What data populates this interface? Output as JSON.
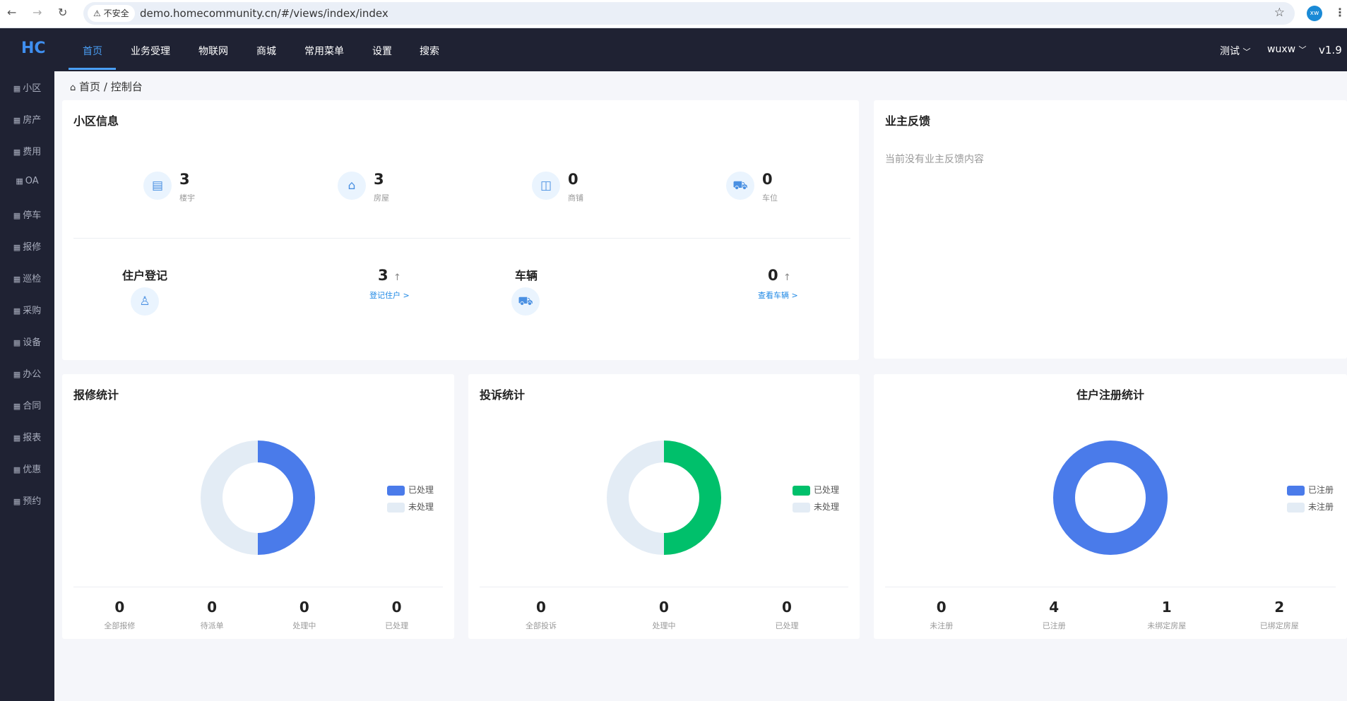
{
  "browser": {
    "insecure_label": "不安全",
    "url": "demo.homecommunity.cn/#/views/index/index",
    "profile_initials": "xw"
  },
  "topnav": {
    "logo": "HC",
    "items": [
      "首页",
      "业务受理",
      "物联网",
      "商城",
      "常用菜单",
      "设置",
      "搜索"
    ],
    "active": "首页",
    "community": "测试",
    "user": "wuxw",
    "version": "v1.9"
  },
  "sidebar": {
    "items": [
      "小区",
      "房产",
      "费用",
      "OA",
      "停车",
      "报修",
      "巡检",
      "采购",
      "设备",
      "办公",
      "合同",
      "报表",
      "优惠",
      "预约"
    ]
  },
  "breadcrumb": {
    "home": "首页",
    "separator": "/",
    "current": "控制台"
  },
  "community_info": {
    "title": "小区信息",
    "stats": [
      {
        "icon": "building-icon",
        "value": "3",
        "label": "楼宇"
      },
      {
        "icon": "house-icon",
        "value": "3",
        "label": "房屋"
      },
      {
        "icon": "shop-bag-icon",
        "value": "0",
        "label": "商铺"
      },
      {
        "icon": "truck-icon",
        "value": "0",
        "label": "车位"
      }
    ],
    "owner_register": {
      "title": "住户登记",
      "count": "3",
      "link": "登记住户 >"
    },
    "vehicles": {
      "title": "车辆",
      "count": "0",
      "link": "查看车辆 >"
    }
  },
  "feedback": {
    "title": "业主反馈",
    "empty_text": "当前没有业主反馈内容"
  },
  "colors": {
    "blue": "#4a7bea",
    "green": "#00c06b",
    "light": "#e3ecf5",
    "accent": "#4a9ff5"
  },
  "chart_data": [
    {
      "type": "pie",
      "title": "报修统计",
      "legend": "right",
      "categories": [
        "已处理",
        "未处理"
      ],
      "values": [
        0,
        0
      ],
      "colors": [
        "#4a7bea",
        "#e3ecf5"
      ],
      "stats": [
        {
          "value": "0",
          "label": "全部报修"
        },
        {
          "value": "0",
          "label": "待派单"
        },
        {
          "value": "0",
          "label": "处理中"
        },
        {
          "value": "0",
          "label": "已处理"
        }
      ]
    },
    {
      "type": "pie",
      "title": "投诉统计",
      "legend": "right",
      "categories": [
        "已处理",
        "未处理"
      ],
      "values": [
        0,
        0
      ],
      "colors": [
        "#00c06b",
        "#e3ecf5"
      ],
      "stats": [
        {
          "value": "0",
          "label": "全部投诉"
        },
        {
          "value": "0",
          "label": "处理中"
        },
        {
          "value": "0",
          "label": "已处理"
        }
      ]
    },
    {
      "type": "pie",
      "title": "住户注册统计",
      "legend": "right",
      "categories": [
        "已注册",
        "未注册"
      ],
      "values": [
        4,
        0
      ],
      "colors": [
        "#4a7bea",
        "#e3ecf5"
      ],
      "stats": [
        {
          "value": "0",
          "label": "未注册"
        },
        {
          "value": "4",
          "label": "已注册"
        },
        {
          "value": "1",
          "label": "未绑定房屋"
        },
        {
          "value": "2",
          "label": "已绑定房屋"
        }
      ]
    }
  ]
}
